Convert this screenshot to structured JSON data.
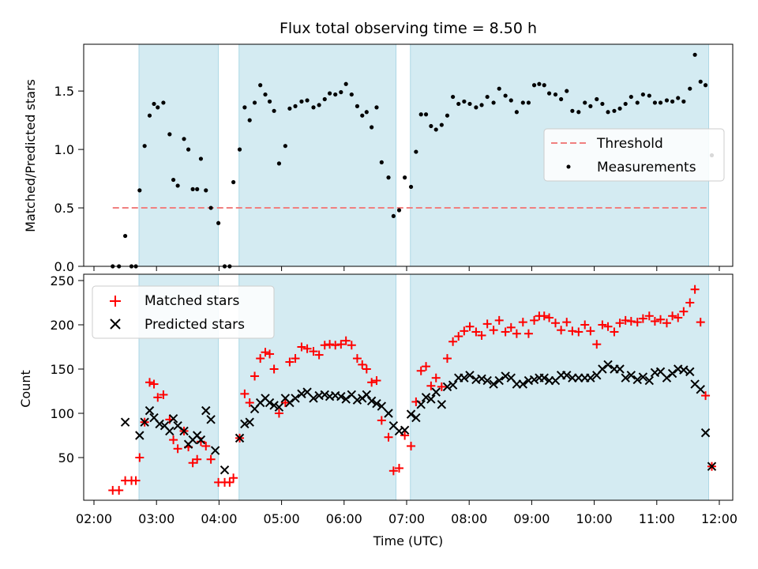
{
  "title": "Flux total observing time = 8.50 h",
  "chart_data": [
    {
      "type": "scatter",
      "xlabel": "",
      "ylabel": "Matched/Predicted stars",
      "x_unit": "hours UTC",
      "xlim": [
        1.85,
        12.25
      ],
      "ylim": [
        0,
        1.9
      ],
      "yticks": [
        0.0,
        0.5,
        1.0,
        1.5
      ],
      "ytick_labels": [
        "0.0",
        "0.5",
        "1.0",
        "1.5"
      ],
      "grid": false,
      "legend_position": "center-right",
      "shaded_intervals": [
        [
          2.72,
          3.99
        ],
        [
          4.32,
          6.83
        ],
        [
          7.06,
          11.83
        ]
      ],
      "threshold": {
        "name": "Threshold",
        "y": 0.5,
        "x_range": [
          2.3,
          11.83
        ],
        "color": "#f08080"
      },
      "series": [
        {
          "name": "Measurements",
          "color": "#000000",
          "x": [
            2.3,
            2.4,
            2.5,
            2.6,
            2.67,
            2.73,
            2.81,
            2.89,
            2.96,
            3.02,
            3.11,
            3.21,
            3.27,
            3.34,
            3.44,
            3.51,
            3.58,
            3.65,
            3.71,
            3.79,
            3.87,
            3.99,
            4.09,
            4.17,
            4.23,
            4.33,
            4.41,
            4.49,
            4.57,
            4.66,
            4.74,
            4.81,
            4.88,
            4.96,
            5.06,
            5.13,
            5.22,
            5.32,
            5.41,
            5.51,
            5.6,
            5.69,
            5.77,
            5.86,
            5.95,
            6.03,
            6.12,
            6.21,
            6.29,
            6.36,
            6.44,
            6.52,
            6.6,
            6.71,
            6.79,
            6.88,
            6.97,
            7.07,
            7.15,
            7.23,
            7.31,
            7.39,
            7.47,
            7.56,
            7.65,
            7.74,
            7.83,
            7.92,
            8.01,
            8.11,
            8.2,
            8.29,
            8.39,
            8.48,
            8.58,
            8.67,
            8.76,
            8.86,
            8.95,
            9.04,
            9.12,
            9.2,
            9.28,
            9.38,
            9.47,
            9.56,
            9.65,
            9.75,
            9.85,
            9.94,
            10.04,
            10.13,
            10.22,
            10.32,
            10.41,
            10.5,
            10.59,
            10.69,
            10.78,
            10.88,
            10.97,
            11.06,
            11.16,
            11.25,
            11.34,
            11.43,
            11.53,
            11.61,
            11.7,
            11.78,
            11.88
          ],
          "y": [
            0.0,
            0.0,
            0.26,
            0.0,
            0.0,
            0.65,
            1.03,
            1.29,
            1.39,
            1.36,
            1.4,
            1.13,
            0.74,
            0.69,
            1.09,
            1.0,
            0.66,
            0.66,
            0.92,
            0.65,
            0.5,
            0.37,
            0.0,
            0.0,
            0.72,
            1.0,
            1.36,
            1.25,
            1.4,
            1.55,
            1.47,
            1.41,
            1.33,
            0.88,
            1.03,
            1.35,
            1.37,
            1.41,
            1.42,
            1.36,
            1.38,
            1.43,
            1.48,
            1.47,
            1.49,
            1.56,
            1.47,
            1.37,
            1.29,
            1.32,
            1.19,
            1.36,
            0.89,
            0.76,
            0.43,
            0.48,
            0.76,
            0.68,
            0.98,
            1.3,
            1.3,
            1.2,
            1.17,
            1.21,
            1.29,
            1.45,
            1.39,
            1.41,
            1.39,
            1.36,
            1.38,
            1.45,
            1.4,
            1.52,
            1.46,
            1.42,
            1.32,
            1.4,
            1.4,
            1.55,
            1.56,
            1.55,
            1.48,
            1.47,
            1.43,
            1.5,
            1.33,
            1.32,
            1.4,
            1.37,
            1.43,
            1.39,
            1.32,
            1.33,
            1.35,
            1.39,
            1.45,
            1.4,
            1.47,
            1.46,
            1.4,
            1.4,
            1.42,
            1.41,
            1.44,
            1.41,
            1.52,
            1.81,
            1.58,
            1.55,
            0.95
          ]
        }
      ]
    },
    {
      "type": "scatter",
      "xlabel": "Time (UTC)",
      "ylabel": "Count",
      "x_unit": "hours UTC",
      "xlim": [
        1.85,
        12.25
      ],
      "ylim": [
        0,
        255
      ],
      "xticks": [
        2,
        3,
        4,
        5,
        6,
        7,
        8,
        9,
        10,
        11,
        12
      ],
      "xtick_labels": [
        "02:00",
        "03:00",
        "04:00",
        "05:00",
        "06:00",
        "07:00",
        "08:00",
        "09:00",
        "10:00",
        "11:00",
        "12:00"
      ],
      "yticks": [
        50,
        100,
        150,
        200,
        250
      ],
      "ytick_labels": [
        "50",
        "100",
        "150",
        "200",
        "250"
      ],
      "grid": false,
      "legend_position": "top-left",
      "shaded_intervals": [
        [
          2.72,
          3.99
        ],
        [
          4.32,
          6.83
        ],
        [
          7.06,
          11.83
        ]
      ],
      "series": [
        {
          "name": "Matched stars",
          "marker": "plus",
          "color": "#ff0000",
          "x": [
            2.3,
            2.4,
            2.5,
            2.6,
            2.67,
            2.73,
            2.81,
            2.89,
            2.96,
            3.02,
            3.11,
            3.21,
            3.27,
            3.34,
            3.44,
            3.51,
            3.58,
            3.65,
            3.71,
            3.79,
            3.87,
            3.99,
            4.09,
            4.17,
            4.23,
            4.33,
            4.41,
            4.49,
            4.57,
            4.66,
            4.74,
            4.81,
            4.88,
            4.96,
            5.06,
            5.13,
            5.22,
            5.32,
            5.41,
            5.51,
            5.6,
            5.69,
            5.77,
            5.86,
            5.95,
            6.03,
            6.12,
            6.21,
            6.29,
            6.36,
            6.44,
            6.52,
            6.6,
            6.71,
            6.79,
            6.88,
            6.97,
            7.07,
            7.15,
            7.23,
            7.31,
            7.39,
            7.47,
            7.56,
            7.65,
            7.74,
            7.83,
            7.92,
            8.01,
            8.11,
            8.2,
            8.29,
            8.39,
            8.48,
            8.58,
            8.67,
            8.76,
            8.86,
            8.95,
            9.04,
            9.12,
            9.2,
            9.28,
            9.38,
            9.47,
            9.56,
            9.65,
            9.75,
            9.85,
            9.94,
            10.04,
            10.13,
            10.22,
            10.32,
            10.41,
            10.5,
            10.59,
            10.69,
            10.78,
            10.88,
            10.97,
            11.06,
            11.16,
            11.25,
            11.34,
            11.43,
            11.53,
            11.61,
            11.7,
            11.78,
            11.88
          ],
          "y": [
            13,
            13,
            24,
            24,
            24,
            50,
            90,
            135,
            133,
            118,
            121,
            93,
            70,
            60,
            80,
            62,
            44,
            48,
            68,
            63,
            48,
            22,
            22,
            22,
            27,
            72,
            122,
            112,
            142,
            162,
            169,
            167,
            150,
            100,
            112,
            158,
            162,
            175,
            173,
            170,
            166,
            177,
            178,
            177,
            178,
            182,
            177,
            162,
            155,
            150,
            135,
            137,
            92,
            73,
            35,
            38,
            75,
            63,
            113,
            148,
            153,
            131,
            140,
            130,
            162,
            181,
            187,
            193,
            198,
            192,
            188,
            201,
            194,
            205,
            192,
            197,
            190,
            203,
            190,
            205,
            210,
            210,
            208,
            202,
            194,
            203,
            193,
            192,
            200,
            193,
            178,
            200,
            198,
            192,
            202,
            205,
            204,
            203,
            207,
            210,
            204,
            206,
            202,
            210,
            208,
            215,
            225,
            240,
            203,
            120,
            40
          ]
        },
        {
          "name": "Predicted stars",
          "marker": "x",
          "color": "#000000",
          "x": [
            2.5,
            2.73,
            2.81,
            2.89,
            2.96,
            3.05,
            3.13,
            3.21,
            3.27,
            3.34,
            3.44,
            3.51,
            3.58,
            3.65,
            3.71,
            3.79,
            3.87,
            3.94,
            4.09,
            4.33,
            4.41,
            4.49,
            4.57,
            4.66,
            4.74,
            4.81,
            4.88,
            4.96,
            5.06,
            5.13,
            5.22,
            5.32,
            5.41,
            5.51,
            5.6,
            5.69,
            5.77,
            5.86,
            5.95,
            6.03,
            6.12,
            6.21,
            6.29,
            6.36,
            6.44,
            6.52,
            6.6,
            6.71,
            6.79,
            6.88,
            6.97,
            7.07,
            7.15,
            7.23,
            7.31,
            7.39,
            7.47,
            7.56,
            7.65,
            7.74,
            7.83,
            7.92,
            8.01,
            8.11,
            8.2,
            8.29,
            8.39,
            8.48,
            8.58,
            8.67,
            8.76,
            8.86,
            8.95,
            9.04,
            9.12,
            9.2,
            9.28,
            9.38,
            9.47,
            9.56,
            9.65,
            9.75,
            9.85,
            9.94,
            10.04,
            10.13,
            10.22,
            10.32,
            10.41,
            10.5,
            10.59,
            10.69,
            10.78,
            10.88,
            10.97,
            11.06,
            11.16,
            11.25,
            11.34,
            11.43,
            11.53,
            11.61,
            11.7,
            11.78,
            11.88
          ],
          "y": [
            90,
            75,
            90,
            103,
            95,
            88,
            86,
            80,
            94,
            86,
            80,
            65,
            70,
            75,
            70,
            103,
            93,
            58,
            36,
            72,
            88,
            90,
            105,
            112,
            117,
            112,
            109,
            107,
            117,
            112,
            117,
            122,
            124,
            117,
            120,
            121,
            119,
            120,
            119,
            116,
            121,
            115,
            117,
            121,
            114,
            111,
            108,
            100,
            86,
            80,
            81,
            99,
            95,
            110,
            118,
            116,
            124,
            110,
            130,
            132,
            140,
            140,
            143,
            138,
            139,
            137,
            133,
            137,
            142,
            140,
            133,
            133,
            137,
            138,
            140,
            140,
            137,
            137,
            143,
            143,
            140,
            140,
            140,
            140,
            143,
            150,
            155,
            150,
            150,
            140,
            143,
            138,
            141,
            137,
            146,
            147,
            140,
            145,
            150,
            149,
            147,
            133,
            127,
            78,
            40
          ]
        }
      ]
    }
  ]
}
